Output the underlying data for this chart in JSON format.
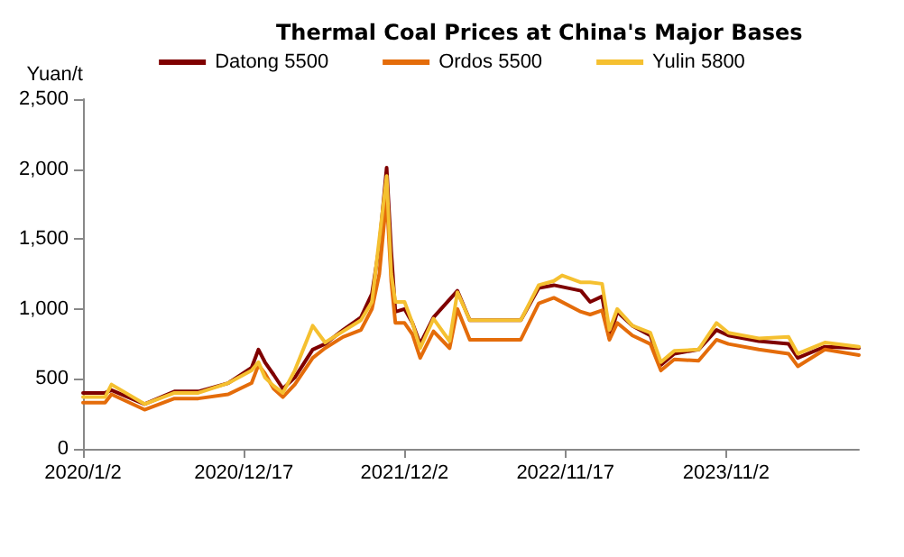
{
  "chart_data": {
    "type": "line",
    "title": "Thermal Coal Prices at China's Major Bases",
    "ylabel": "Yuan/t",
    "xlim": [
      "2020-01-02",
      "2024-08-17"
    ],
    "xticks": [
      {
        "value": "2020-01-02",
        "label": "2020/1/2"
      },
      {
        "value": "2020-12-17",
        "label": "2020/12/17"
      },
      {
        "value": "2021-12-02",
        "label": "2021/12/2"
      },
      {
        "value": "2022-11-17",
        "label": "2022/11/17"
      },
      {
        "value": "2023-11-02",
        "label": "2023/11/2"
      }
    ],
    "ylim": [
      0,
      2500
    ],
    "yticks": [
      0,
      500,
      {
        "value": 1000,
        "label": "1,000"
      },
      {
        "value": 1500,
        "label": "1,500"
      },
      {
        "value": 2000,
        "label": "2,000"
      },
      {
        "value": 2500,
        "label": "2,500"
      }
    ],
    "grid": false,
    "legend": "top",
    "marker": "none",
    "line_style": "solid",
    "series": [
      {
        "name": "Datong 5500",
        "color": "#7f0000",
        "x": [
          "2020-01-02",
          "2020-02-19",
          "2020-03-04",
          "2020-05-15",
          "2020-07-19",
          "2020-09-09",
          "2020-11-13",
          "2021-01-03",
          "2021-01-18",
          "2021-02-01",
          "2021-02-20",
          "2021-03-12",
          "2021-04-07",
          "2021-05-16",
          "2021-06-12",
          "2021-07-21",
          "2021-08-29",
          "2021-09-22",
          "2021-10-08",
          "2021-10-24",
          "2021-11-03",
          "2021-11-12",
          "2021-12-02",
          "2021-12-19",
          "2022-01-05",
          "2022-02-03",
          "2022-03-27",
          "2022-04-23",
          "2022-08-12",
          "2022-09-20",
          "2022-10-23",
          "2022-12-21",
          "2023-01-10",
          "2023-02-05",
          "2023-02-21",
          "2023-03-10",
          "2023-04-12",
          "2023-05-21",
          "2023-06-13",
          "2023-07-12",
          "2023-09-03",
          "2023-10-12",
          "2023-11-07",
          "2024-01-12",
          "2024-03-17",
          "2024-04-06",
          "2024-06-04",
          "2024-08-17"
        ],
        "values": [
          400,
          400,
          420,
          320,
          410,
          410,
          470,
          580,
          710,
          620,
          530,
          430,
          510,
          710,
          750,
          850,
          940,
          1110,
          1450,
          2010,
          1410,
          980,
          1000,
          900,
          750,
          940,
          1130,
          920,
          920,
          1150,
          1170,
          1130,
          1050,
          1090,
          790,
          980,
          880,
          810,
          600,
          680,
          710,
          850,
          810,
          770,
          750,
          650,
          730,
          720
        ]
      },
      {
        "name": "Ordos 5500",
        "color": "#e46c0a",
        "x": [
          "2020-01-02",
          "2020-02-19",
          "2020-03-04",
          "2020-05-15",
          "2020-07-19",
          "2020-09-09",
          "2020-11-13",
          "2021-01-03",
          "2021-01-18",
          "2021-02-01",
          "2021-02-20",
          "2021-03-12",
          "2021-04-07",
          "2021-05-16",
          "2021-06-12",
          "2021-07-21",
          "2021-08-29",
          "2021-09-22",
          "2021-10-08",
          "2021-10-24",
          "2021-11-03",
          "2021-11-12",
          "2021-12-02",
          "2021-12-19",
          "2022-01-05",
          "2022-02-03",
          "2022-03-10",
          "2022-03-27",
          "2022-04-23",
          "2022-08-12",
          "2022-09-20",
          "2022-10-23",
          "2022-12-21",
          "2023-01-10",
          "2023-02-05",
          "2023-02-21",
          "2023-03-10",
          "2023-04-12",
          "2023-05-21",
          "2023-06-13",
          "2023-07-12",
          "2023-09-03",
          "2023-10-12",
          "2023-11-07",
          "2024-01-12",
          "2024-03-17",
          "2024-04-06",
          "2024-06-04",
          "2024-08-17"
        ],
        "values": [
          330,
          330,
          390,
          280,
          360,
          360,
          390,
          470,
          600,
          540,
          430,
          370,
          460,
          650,
          720,
          800,
          850,
          1000,
          1250,
          1800,
          1200,
          900,
          900,
          820,
          650,
          840,
          720,
          1000,
          780,
          780,
          1040,
          1080,
          980,
          960,
          990,
          780,
          900,
          810,
          750,
          560,
          640,
          630,
          780,
          750,
          710,
          680,
          590,
          710,
          670
        ]
      },
      {
        "name": "Yulin 5800",
        "color": "#f5c030",
        "x": [
          "2020-01-02",
          "2020-02-19",
          "2020-03-04",
          "2020-05-15",
          "2020-07-19",
          "2020-09-09",
          "2020-11-13",
          "2021-01-03",
          "2021-01-18",
          "2021-02-01",
          "2021-02-20",
          "2021-03-12",
          "2021-04-07",
          "2021-05-16",
          "2021-06-12",
          "2021-07-21",
          "2021-08-29",
          "2021-09-22",
          "2021-10-08",
          "2021-10-24",
          "2021-11-03",
          "2021-11-12",
          "2021-12-02",
          "2021-12-19",
          "2022-01-05",
          "2022-02-03",
          "2022-03-10",
          "2022-03-27",
          "2022-04-23",
          "2022-08-12",
          "2022-09-20",
          "2022-10-23",
          "2022-11-10",
          "2022-12-21",
          "2023-01-10",
          "2023-02-05",
          "2023-02-21",
          "2023-03-10",
          "2023-04-12",
          "2023-05-21",
          "2023-06-13",
          "2023-07-12",
          "2023-09-03",
          "2023-10-12",
          "2023-11-07",
          "2024-01-12",
          "2024-03-17",
          "2024-04-06",
          "2024-06-04",
          "2024-08-17"
        ],
        "values": [
          370,
          370,
          460,
          320,
          400,
          400,
          470,
          560,
          620,
          510,
          450,
          400,
          560,
          880,
          760,
          840,
          920,
          1050,
          1500,
          1950,
          1250,
          1050,
          1050,
          900,
          720,
          930,
          770,
          1120,
          920,
          920,
          1170,
          1200,
          1240,
          1190,
          1190,
          1180,
          850,
          1000,
          880,
          830,
          620,
          700,
          710,
          900,
          830,
          790,
          800,
          680,
          760,
          730
        ]
      }
    ]
  }
}
